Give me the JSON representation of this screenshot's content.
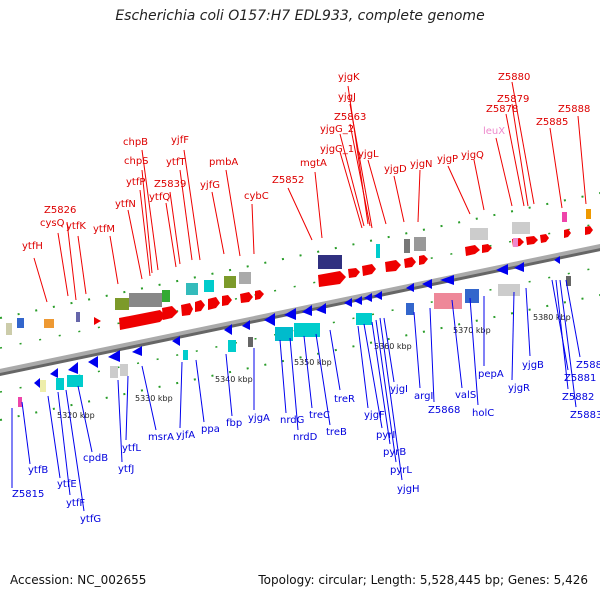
{
  "title": "Escherichia coli O157:H7 EDL933, complete genome",
  "footer": {
    "accession": "Accession: NC_002655",
    "summary": "Topology: circular; Length: 5,528,445 bp; Genes: 5,426"
  },
  "colors": {
    "forward": "#dd0000",
    "reverse": "#0000dd",
    "rna": "#ee88cc",
    "backbone": "#888888"
  },
  "ticks": [
    "5320 kbp",
    "5330 kbp",
    "5340 kbp",
    "5350 kbp",
    "5360 kbp",
    "5370 kbp",
    "5380 kbp"
  ],
  "forward_genes": [
    "ytfH",
    "cysQ",
    "Z5826",
    "ytfK",
    "ytfM",
    "ytfN",
    "ytfP",
    "chpS",
    "chpB",
    "Z5839",
    "ytfQ",
    "ytfT",
    "yjfF",
    "yjfG",
    "pmbA",
    "cybC",
    "Z5852",
    "mgtA",
    "yjgK",
    "yjgJ",
    "Z5863",
    "yjgG_2",
    "yjgG_1",
    "yjgL",
    "yjgD",
    "yjgN",
    "yjgP",
    "yjgQ",
    "leuX",
    "Z5878",
    "Z5879",
    "Z5880",
    "Z5885",
    "Z5888"
  ],
  "reverse_genes": [
    "Z5815",
    "ytfB",
    "ytfE",
    "ytfF",
    "ytfG",
    "cpdB",
    "ytfJ",
    "ytfL",
    "msrA",
    "yjfA",
    "ppa",
    "fbp",
    "yjgA",
    "nrdG",
    "nrdD",
    "treC",
    "treB",
    "treR",
    "yjgF",
    "pyrI",
    "pyrB",
    "pyrL",
    "yjgH",
    "yjgI",
    "argI",
    "Z5868",
    "valS",
    "holC",
    "pepA",
    "yjgR",
    "yjgB",
    "Z5881",
    "Z5882",
    "Z5883",
    "Z5884"
  ]
}
